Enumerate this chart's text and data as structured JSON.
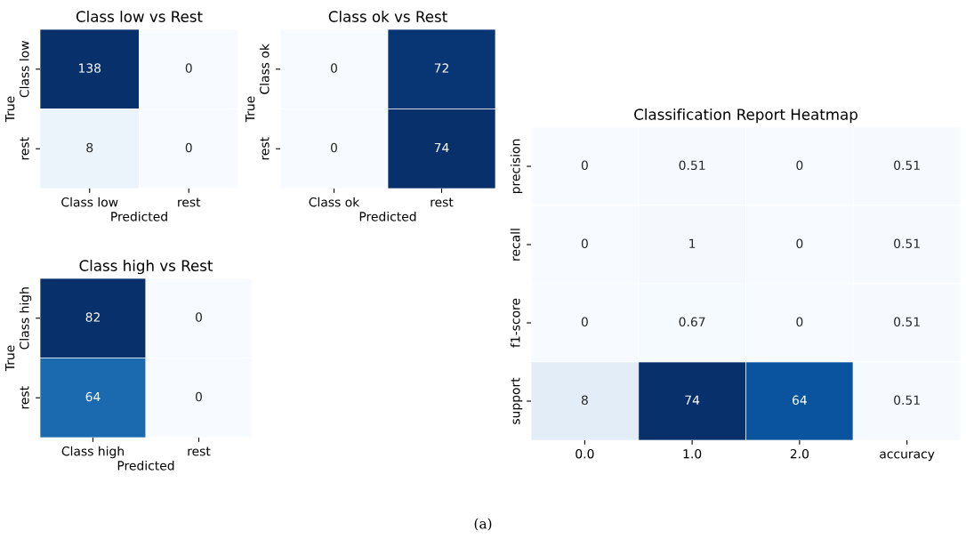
{
  "chart_data": [
    {
      "type": "heatmap",
      "title": "Class low vs Rest",
      "xlabel": "Predicted",
      "ylabel": "True",
      "categories": [
        "Class low",
        "rest"
      ],
      "y_categories": [
        "Class low",
        "rest"
      ],
      "cells": [
        [
          138,
          0
        ],
        [
          8,
          0
        ]
      ],
      "data_labels": true
    },
    {
      "type": "heatmap",
      "title": "Class ok vs Rest",
      "xlabel": "Predicted",
      "ylabel": "True",
      "categories": [
        "Class ok",
        "rest"
      ],
      "y_categories": [
        "Class ok",
        "rest"
      ],
      "cells": [
        [
          0,
          72
        ],
        [
          0,
          74
        ]
      ],
      "data_labels": true
    },
    {
      "type": "heatmap",
      "title": "Class high vs Rest",
      "xlabel": "Predicted",
      "ylabel": "True",
      "categories": [
        "Class high",
        "rest"
      ],
      "y_categories": [
        "Class high",
        "rest"
      ],
      "cells": [
        [
          82,
          0
        ],
        [
          64,
          0
        ]
      ],
      "data_labels": true
    },
    {
      "type": "heatmap",
      "title": "Classification Report Heatmap",
      "categories": [
        "0.0",
        "1.0",
        "2.0",
        "accuracy"
      ],
      "y_categories": [
        "precision",
        "recall",
        "f1-score",
        "support"
      ],
      "cells": [
        [
          0,
          0.51,
          0,
          0.51
        ],
        [
          0,
          1,
          0,
          0.51
        ],
        [
          0,
          0.67,
          0,
          0.51
        ],
        [
          8,
          74,
          64,
          0.51
        ]
      ],
      "data_labels": true,
      "annotations": [
        "(a)"
      ]
    }
  ]
}
